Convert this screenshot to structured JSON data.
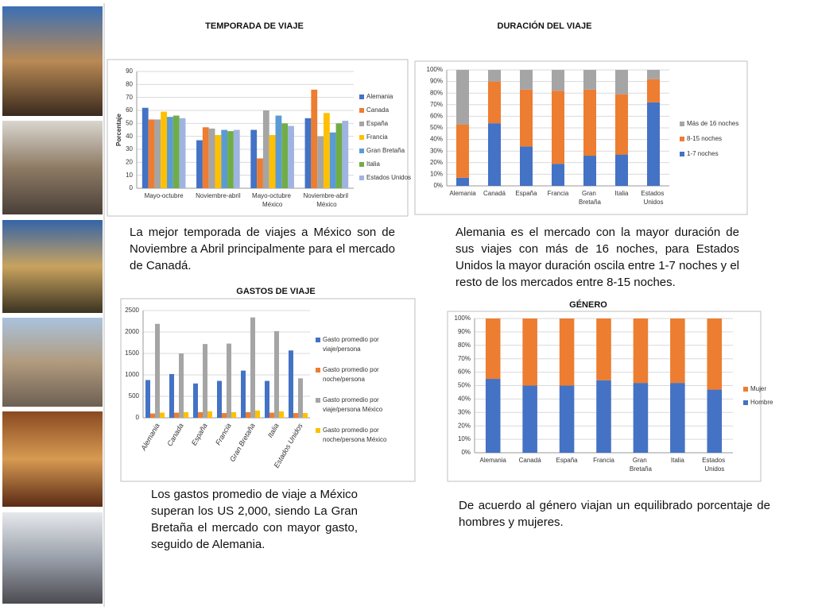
{
  "chart_data": [
    {
      "type": "bar",
      "title": "TEMPORADA DE VIAJE",
      "ylabel": "Porcentaje",
      "categories": [
        "Mayo-octubre",
        "Noviembre-abril",
        "Mayo-octubre México",
        "Noviembre-abril México"
      ],
      "series": [
        {
          "name": "Alemania",
          "color": "#4472c4",
          "values": [
            62,
            37,
            45,
            54
          ]
        },
        {
          "name": "Canada",
          "color": "#ed7d31",
          "values": [
            53,
            47,
            23,
            76
          ]
        },
        {
          "name": "España",
          "color": "#a5a5a5",
          "values": [
            53,
            46,
            60,
            40
          ]
        },
        {
          "name": "Francia",
          "color": "#ffc000",
          "values": [
            59,
            41,
            41,
            58
          ]
        },
        {
          "name": "Gran Bretaña",
          "color": "#5b9bd5",
          "values": [
            55,
            45,
            56,
            43
          ]
        },
        {
          "name": "Italia",
          "color": "#70ad47",
          "values": [
            56,
            44,
            50,
            50
          ]
        },
        {
          "name": "Estados Unidos",
          "color": "#9fb4e0",
          "values": [
            54,
            45,
            48,
            52
          ]
        }
      ],
      "ylim": [
        0,
        90
      ],
      "yticks": [
        0,
        10,
        20,
        30,
        40,
        50,
        60,
        70,
        80,
        90
      ],
      "grid": true,
      "legend": "right",
      "caption": "La mejor temporada de viajes a México son de Noviembre a Abril principalmente para el mercado de Canadá."
    },
    {
      "type": "stacked_bar",
      "title": "DURACIÓN DEL VIAJE",
      "categories": [
        "Alemania",
        "Canadá",
        "España",
        "Francia",
        "Gran Bretaña",
        "Italia",
        "Estados Unidos"
      ],
      "series": [
        {
          "name": "1-7 noches",
          "color": "#4472c4",
          "values": [
            7,
            54,
            34,
            19,
            26,
            27,
            72
          ]
        },
        {
          "name": "8-15 noches",
          "color": "#ed7d31",
          "values": [
            46,
            36,
            49,
            63,
            57,
            52,
            20
          ]
        },
        {
          "name": "Más de 16 noches",
          "color": "#a5a5a5",
          "values": [
            47,
            10,
            17,
            18,
            17,
            21,
            8
          ]
        }
      ],
      "ylim": [
        0,
        100
      ],
      "yticks": [
        {
          "value": 0,
          "label": "0%"
        },
        {
          "value": 10,
          "label": "10%"
        },
        {
          "value": 20,
          "label": "20%"
        },
        {
          "value": 30,
          "label": "30%"
        },
        {
          "value": 40,
          "label": "40%"
        },
        {
          "value": 50,
          "label": "50%"
        },
        {
          "value": 60,
          "label": "60%"
        },
        {
          "value": 70,
          "label": "70%"
        },
        {
          "value": 80,
          "label": "80%"
        },
        {
          "value": 90,
          "label": "90%"
        },
        {
          "value": 100,
          "label": "100%"
        }
      ],
      "grid": true,
      "legend": "right",
      "caption": "Alemania es el mercado con la mayor duración de sus viajes con más de 16 noches, para Estados Unidos la mayor duración oscila entre 1-7 noches y el resto de los mercados entre 8-15 noches."
    },
    {
      "type": "bar",
      "title": "GASTOS DE VIAJE",
      "categories": [
        "Alemania",
        "Canada",
        "España",
        "Francia",
        "Gran Bretaña",
        "Italia",
        "Estados Unidos"
      ],
      "series": [
        {
          "name": "Gasto promedio por viaje/persona",
          "color": "#4472c4",
          "values": [
            880,
            1020,
            800,
            860,
            1100,
            860,
            1570
          ]
        },
        {
          "name": "Gasto promedio por noche/persona",
          "color": "#ed7d31",
          "values": [
            100,
            120,
            130,
            110,
            130,
            120,
            110
          ]
        },
        {
          "name": "Gasto promedio por viaje/persona México",
          "color": "#a5a5a5",
          "values": [
            2190,
            1500,
            1720,
            1730,
            2340,
            2020,
            920
          ]
        },
        {
          "name": "Gasto promedio por noche/persona México",
          "color": "#ffc000",
          "values": [
            120,
            130,
            150,
            130,
            170,
            150,
            110
          ]
        }
      ],
      "ylim": [
        0,
        2500
      ],
      "yticks": [
        0,
        500,
        1000,
        1500,
        2000,
        2500
      ],
      "grid": true,
      "legend": "right",
      "caption": "Los gastos promedio de viaje a México superan los US 2,000, siendo La Gran Bretaña el mercado con mayor gasto, seguido de Alemania."
    },
    {
      "type": "stacked_bar",
      "title": "GÉNERO",
      "categories": [
        "Alemania",
        "Canadá",
        "España",
        "Francia",
        "Gran Bretaña",
        "Italia",
        "Estados Unidos"
      ],
      "series": [
        {
          "name": "Hombre",
          "color": "#4472c4",
          "values": [
            55,
            50,
            50,
            54,
            52,
            52,
            47
          ]
        },
        {
          "name": "Mujer",
          "color": "#ed7d31",
          "values": [
            45,
            50,
            50,
            46,
            48,
            48,
            53
          ]
        }
      ],
      "ylim": [
        0,
        100
      ],
      "yticks": [
        {
          "value": 0,
          "label": "0%"
        },
        {
          "value": 10,
          "label": "10%"
        },
        {
          "value": 20,
          "label": "20%"
        },
        {
          "value": 30,
          "label": "30%"
        },
        {
          "value": 40,
          "label": "40%"
        },
        {
          "value": 50,
          "label": "50%"
        },
        {
          "value": 60,
          "label": "60%"
        },
        {
          "value": 70,
          "label": "70%"
        },
        {
          "value": 80,
          "label": "80%"
        },
        {
          "value": 90,
          "label": "90%"
        },
        {
          "value": 100,
          "label": "100%"
        }
      ],
      "grid": true,
      "legend": "right",
      "caption": "De acuerdo al género viajan un equilibrado porcentaje de hombres y mujeres."
    }
  ]
}
